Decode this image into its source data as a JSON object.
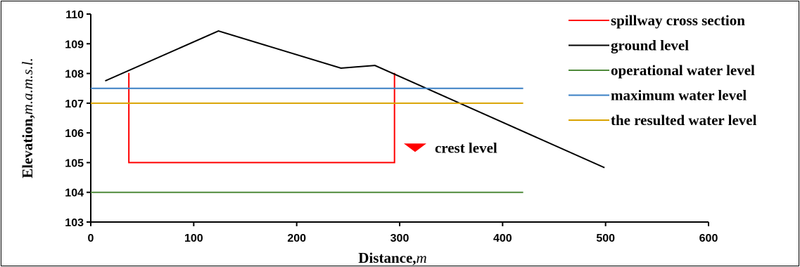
{
  "chart_data": {
    "type": "line",
    "xlabel": "Distance,",
    "xlabel_unit": "m",
    "ylabel": "Elevation,",
    "ylabel_unit": "m.a.m.s.l.",
    "xlim": [
      0,
      600
    ],
    "ylim": [
      103,
      110
    ],
    "xticks": [
      0,
      100,
      200,
      300,
      400,
      500,
      600
    ],
    "yticks": [
      103,
      104,
      105,
      106,
      107,
      108,
      109,
      110
    ],
    "grid": false,
    "legend_position": "top-right",
    "series": [
      {
        "name": "spillway cross section",
        "color": "#ff0000",
        "points": [
          [
            37,
            108.02
          ],
          [
            37,
            105
          ],
          [
            295,
            105
          ],
          [
            295,
            108.02
          ]
        ]
      },
      {
        "name": "ground level",
        "color": "#000000",
        "points": [
          [
            14,
            107.75
          ],
          [
            124,
            109.43
          ],
          [
            243,
            108.18
          ],
          [
            276,
            108.27
          ],
          [
            499,
            104.83
          ]
        ]
      },
      {
        "name": "operational water level",
        "color": "#4f8a3a",
        "points": [
          [
            0,
            104
          ],
          [
            420,
            104
          ]
        ]
      },
      {
        "name": "maximum water level",
        "color": "#3a7fc4",
        "points": [
          [
            0,
            107.5
          ],
          [
            420,
            107.5
          ]
        ]
      },
      {
        "name": "the resulted water level",
        "color": "#d9a300",
        "points": [
          [
            0,
            107
          ],
          [
            420,
            107
          ]
        ]
      }
    ],
    "annotations": [
      {
        "text": "crest level",
        "marker": "inverted-triangle",
        "color": "#ff0000",
        "x": 315,
        "y": 105.5
      }
    ]
  }
}
